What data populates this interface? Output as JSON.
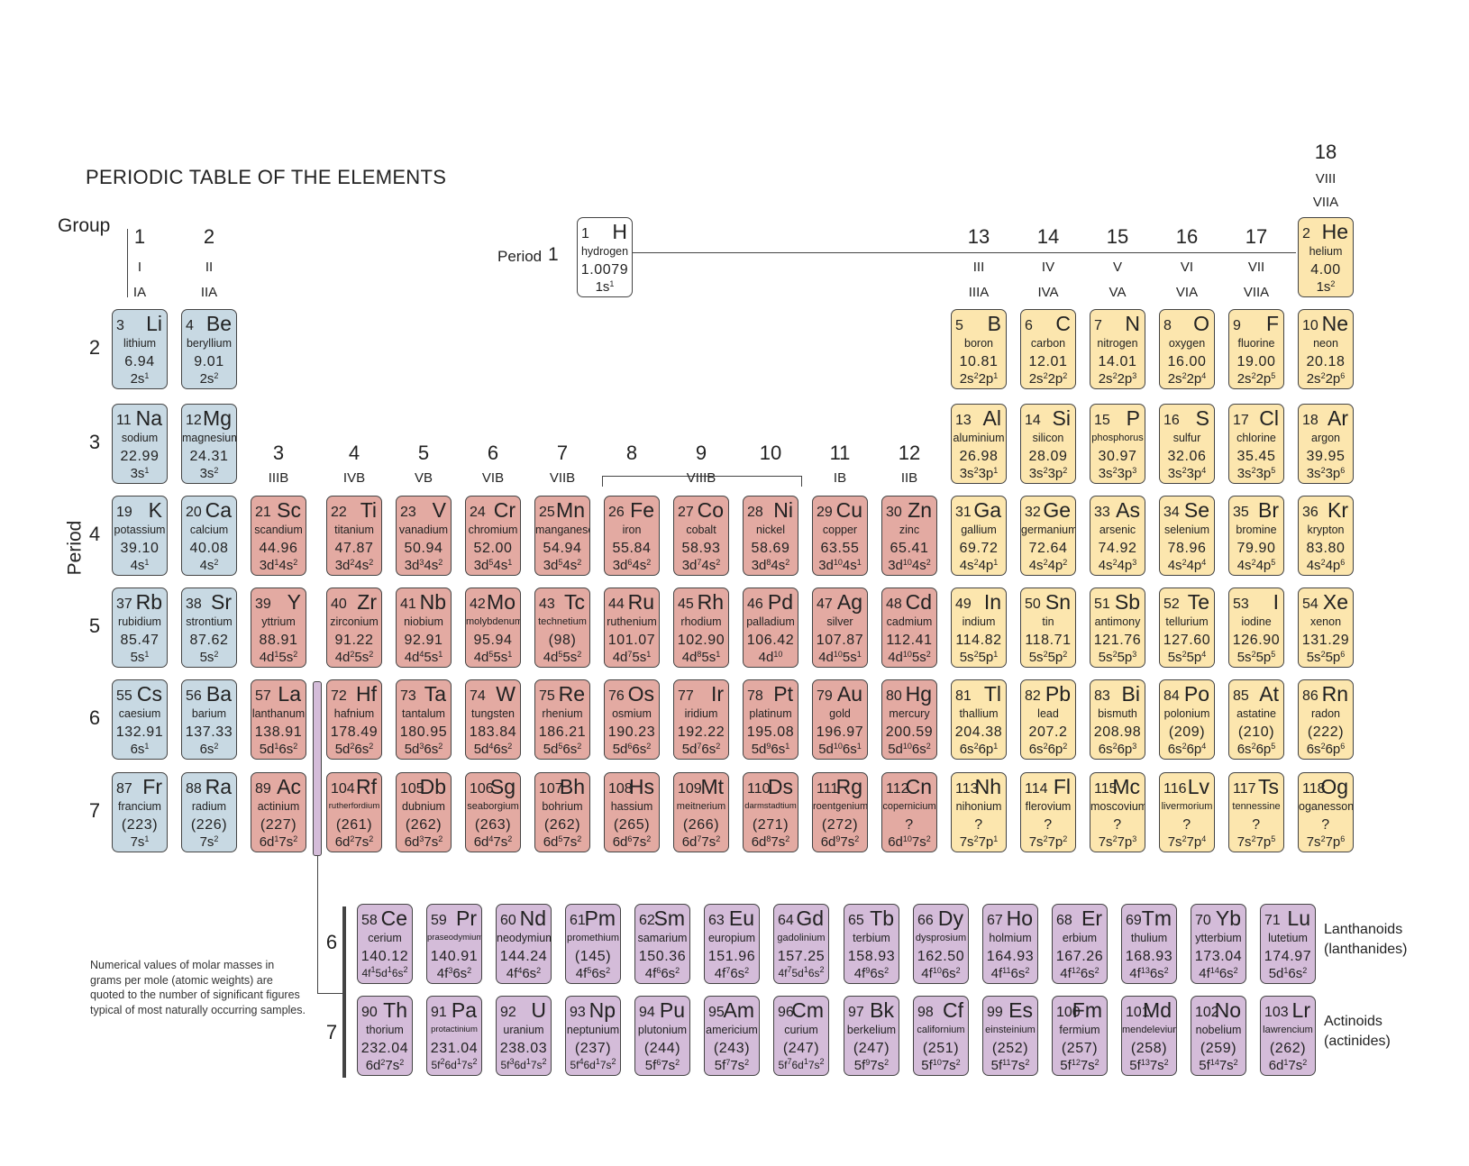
{
  "title": "PERIODIC TABLE OF THE ELEMENTS",
  "labels": {
    "group": "Group",
    "period_vertical": "Period",
    "period_h": "Period",
    "period_h_num": "1",
    "lanthanoids_1": "Lanthanoids",
    "lanthanoids_2": "(lanthanides)",
    "actinoids_1": "Actinoids",
    "actinoids_2": "(actinides)",
    "fblock_6": "6",
    "fblock_7": "7"
  },
  "groups": [
    {
      "n": "1",
      "roman1": "I",
      "roman2": "IA"
    },
    {
      "n": "2",
      "roman1": "II",
      "roman2": "IIA"
    },
    {
      "n": "3",
      "roman2": "IIIB"
    },
    {
      "n": "4",
      "roman2": "IVB"
    },
    {
      "n": "5",
      "roman2": "VB"
    },
    {
      "n": "6",
      "roman2": "VIB"
    },
    {
      "n": "7",
      "roman2": "VIIB"
    },
    {
      "n": "8"
    },
    {
      "n": "9",
      "roman2": "VIIIB"
    },
    {
      "n": "10"
    },
    {
      "n": "11",
      "roman2": "IB"
    },
    {
      "n": "12",
      "roman2": "IIB"
    },
    {
      "n": "13",
      "roman1": "III",
      "roman2": "IIIA"
    },
    {
      "n": "14",
      "roman1": "IV",
      "roman2": "IVA"
    },
    {
      "n": "15",
      "roman1": "V",
      "roman2": "VA"
    },
    {
      "n": "16",
      "roman1": "VI",
      "roman2": "VIA"
    },
    {
      "n": "17",
      "roman1": "VII",
      "roman2": "VIIA"
    },
    {
      "n": "18",
      "roman1": "VIII",
      "roman2": "VIIA"
    }
  ],
  "periods": [
    "2",
    "3",
    "4",
    "5",
    "6",
    "7"
  ],
  "footnote": "Numerical values of molar masses in grams per mole (atomic weights) are quoted to the number of significant figures typical of most naturally occurring samples.",
  "colors": {
    "s": "#c8d9e3",
    "d": "#e3aaa2",
    "p": "#fce6ae",
    "f": "#d4bcd9",
    "h": "#ffffff"
  },
  "elements": [
    [
      "1",
      "H",
      "hydrogen",
      "1.0079",
      "1s^1",
      "h"
    ],
    [
      "2",
      "He",
      "helium",
      "4.00",
      "1s^2",
      "p"
    ],
    [
      "3",
      "Li",
      "lithium",
      "6.94",
      "2s^1",
      "s"
    ],
    [
      "4",
      "Be",
      "beryllium",
      "9.01",
      "2s^2",
      "s"
    ],
    [
      "5",
      "B",
      "boron",
      "10.81",
      "2s^2 2p^1",
      "p"
    ],
    [
      "6",
      "C",
      "carbon",
      "12.01",
      "2s^2 2p^2",
      "p"
    ],
    [
      "7",
      "N",
      "nitrogen",
      "14.01",
      "2s^2 2p^3",
      "p"
    ],
    [
      "8",
      "O",
      "oxygen",
      "16.00",
      "2s^2 2p^4",
      "p"
    ],
    [
      "9",
      "F",
      "fluorine",
      "19.00",
      "2s^2 2p^5",
      "p"
    ],
    [
      "10",
      "Ne",
      "neon",
      "20.18",
      "2s^2 2p^6",
      "p"
    ],
    [
      "11",
      "Na",
      "sodium",
      "22.99",
      "3s^1",
      "s"
    ],
    [
      "12",
      "Mg",
      "magnesium",
      "24.31",
      "3s^2",
      "s"
    ],
    [
      "13",
      "Al",
      "aluminium",
      "26.98",
      "3s^2 3p^1",
      "p"
    ],
    [
      "14",
      "Si",
      "silicon",
      "28.09",
      "3s^2 3p^2",
      "p"
    ],
    [
      "15",
      "P",
      "phosphorus",
      "30.97",
      "3s^2 3p^3",
      "p"
    ],
    [
      "16",
      "S",
      "sulfur",
      "32.06",
      "3s^2 3p^4",
      "p"
    ],
    [
      "17",
      "Cl",
      "chlorine",
      "35.45",
      "3s^2 3p^5",
      "p"
    ],
    [
      "18",
      "Ar",
      "argon",
      "39.95",
      "3s^2 3p^6",
      "p"
    ],
    [
      "19",
      "K",
      "potassium",
      "39.10",
      "4s^1",
      "s"
    ],
    [
      "20",
      "Ca",
      "calcium",
      "40.08",
      "4s^2",
      "s"
    ],
    [
      "21",
      "Sc",
      "scandium",
      "44.96",
      "3d^1 4s^2",
      "d"
    ],
    [
      "22",
      "Ti",
      "titanium",
      "47.87",
      "3d^2 4s^2",
      "d"
    ],
    [
      "23",
      "V",
      "vanadium",
      "50.94",
      "3d^3 4s^2",
      "d"
    ],
    [
      "24",
      "Cr",
      "chromium",
      "52.00",
      "3d^5 4s^1",
      "d"
    ],
    [
      "25",
      "Mn",
      "manganese",
      "54.94",
      "3d^5 4s^2",
      "d"
    ],
    [
      "26",
      "Fe",
      "iron",
      "55.84",
      "3d^6 4s^2",
      "d"
    ],
    [
      "27",
      "Co",
      "cobalt",
      "58.93",
      "3d^7 4s^2",
      "d"
    ],
    [
      "28",
      "Ni",
      "nickel",
      "58.69",
      "3d^8 4s^2",
      "d"
    ],
    [
      "29",
      "Cu",
      "copper",
      "63.55",
      "3d^10 4s^1",
      "d"
    ],
    [
      "30",
      "Zn",
      "zinc",
      "65.41",
      "3d^10 4s^2",
      "d"
    ],
    [
      "31",
      "Ga",
      "gallium",
      "69.72",
      "4s^2 4p^1",
      "p"
    ],
    [
      "32",
      "Ge",
      "germanium",
      "72.64",
      "4s^2 4p^2",
      "p"
    ],
    [
      "33",
      "As",
      "arsenic",
      "74.92",
      "4s^2 4p^3",
      "p"
    ],
    [
      "34",
      "Se",
      "selenium",
      "78.96",
      "4s^2 4p^4",
      "p"
    ],
    [
      "35",
      "Br",
      "bromine",
      "79.90",
      "4s^2 4p^5",
      "p"
    ],
    [
      "36",
      "Kr",
      "krypton",
      "83.80",
      "4s^2 4p^6",
      "p"
    ],
    [
      "37",
      "Rb",
      "rubidium",
      "85.47",
      "5s^1",
      "s"
    ],
    [
      "38",
      "Sr",
      "strontium",
      "87.62",
      "5s^2",
      "s"
    ],
    [
      "39",
      "Y",
      "yttrium",
      "88.91",
      "4d^1 5s^2",
      "d"
    ],
    [
      "40",
      "Zr",
      "zirconium",
      "91.22",
      "4d^2 5s^2",
      "d"
    ],
    [
      "41",
      "Nb",
      "niobium",
      "92.91",
      "4d^4 5s^1",
      "d"
    ],
    [
      "42",
      "Mo",
      "molybdenum",
      "95.94",
      "4d^5 5s^1",
      "d"
    ],
    [
      "43",
      "Tc",
      "technetium",
      "(98)",
      "4d^5 5s^2",
      "d"
    ],
    [
      "44",
      "Ru",
      "ruthenium",
      "101.07",
      "4d^7 5s^1",
      "d"
    ],
    [
      "45",
      "Rh",
      "rhodium",
      "102.90",
      "4d^8 5s^1",
      "d"
    ],
    [
      "46",
      "Pd",
      "palladium",
      "106.42",
      "4d^10",
      "d"
    ],
    [
      "47",
      "Ag",
      "silver",
      "107.87",
      "4d^10 5s^1",
      "d"
    ],
    [
      "48",
      "Cd",
      "cadmium",
      "112.41",
      "4d^10 5s^2",
      "d"
    ],
    [
      "49",
      "In",
      "indium",
      "114.82",
      "5s^2 5p^1",
      "p"
    ],
    [
      "50",
      "Sn",
      "tin",
      "118.71",
      "5s^2 5p^2",
      "p"
    ],
    [
      "51",
      "Sb",
      "antimony",
      "121.76",
      "5s^2 5p^3",
      "p"
    ],
    [
      "52",
      "Te",
      "tellurium",
      "127.60",
      "5s^2 5p^4",
      "p"
    ],
    [
      "53",
      "I",
      "iodine",
      "126.90",
      "5s^2 5p^5",
      "p"
    ],
    [
      "54",
      "Xe",
      "xenon",
      "131.29",
      "5s^2 5p^6",
      "p"
    ],
    [
      "55",
      "Cs",
      "caesium",
      "132.91",
      "6s^1",
      "s"
    ],
    [
      "56",
      "Ba",
      "barium",
      "137.33",
      "6s^2",
      "s"
    ],
    [
      "57",
      "La",
      "lanthanum",
      "138.91",
      "5d^1 6s^2",
      "d"
    ],
    [
      "72",
      "Hf",
      "hafnium",
      "178.49",
      "5d^2 6s^2",
      "d"
    ],
    [
      "73",
      "Ta",
      "tantalum",
      "180.95",
      "5d^3 6s^2",
      "d"
    ],
    [
      "74",
      "W",
      "tungsten",
      "183.84",
      "5d^4 6s^2",
      "d"
    ],
    [
      "75",
      "Re",
      "rhenium",
      "186.21",
      "5d^5 6s^2",
      "d"
    ],
    [
      "76",
      "Os",
      "osmium",
      "190.23",
      "5d^6 6s^2",
      "d"
    ],
    [
      "77",
      "Ir",
      "iridium",
      "192.22",
      "5d^7 6s^2",
      "d"
    ],
    [
      "78",
      "Pt",
      "platinum",
      "195.08",
      "5d^9 6s^1",
      "d"
    ],
    [
      "79",
      "Au",
      "gold",
      "196.97",
      "5d^10 6s^1",
      "d"
    ],
    [
      "80",
      "Hg",
      "mercury",
      "200.59",
      "5d^10 6s^2",
      "d"
    ],
    [
      "81",
      "Tl",
      "thallium",
      "204.38",
      "6s^2 6p^1",
      "p"
    ],
    [
      "82",
      "Pb",
      "lead",
      "207.2",
      "6s^2 6p^2",
      "p"
    ],
    [
      "83",
      "Bi",
      "bismuth",
      "208.98",
      "6s^2 6p^3",
      "p"
    ],
    [
      "84",
      "Po",
      "polonium",
      "(209)",
      "6s^2 6p^4",
      "p"
    ],
    [
      "85",
      "At",
      "astatine",
      "(210)",
      "6s^2 6p^5",
      "p"
    ],
    [
      "86",
      "Rn",
      "radon",
      "(222)",
      "6s^2 6p^6",
      "p"
    ],
    [
      "87",
      "Fr",
      "francium",
      "(223)",
      "7s^1",
      "s"
    ],
    [
      "88",
      "Ra",
      "radium",
      "(226)",
      "7s^2",
      "s"
    ],
    [
      "89",
      "Ac",
      "actinium",
      "(227)",
      "6d^1 7s^2",
      "d"
    ],
    [
      "104",
      "Rf",
      "rutherfordium",
      "(261)",
      "6d^2 7s^2",
      "d"
    ],
    [
      "105",
      "Db",
      "dubnium",
      "(262)",
      "6d^3 7s^2",
      "d"
    ],
    [
      "106",
      "Sg",
      "seaborgium",
      "(263)",
      "6d^4 7s^2",
      "d"
    ],
    [
      "107",
      "Bh",
      "bohrium",
      "(262)",
      "6d^5 7s^2",
      "d"
    ],
    [
      "108",
      "Hs",
      "hassium",
      "(265)",
      "6d^6 7s^2",
      "d"
    ],
    [
      "109",
      "Mt",
      "meitnerium",
      "(266)",
      "6d^7 7s^2",
      "d"
    ],
    [
      "110",
      "Ds",
      "darmstadtium",
      "(271)",
      "6d^8 7s^2",
      "d"
    ],
    [
      "111",
      "Rg",
      "roentgenium",
      "(272)",
      "6d^9 7s^2",
      "d"
    ],
    [
      "112",
      "Cn",
      "copernicium",
      "?",
      "6d^10 7s^2",
      "d"
    ],
    [
      "113",
      "Nh",
      "nihonium",
      "?",
      "7s^2 7p^1",
      "p"
    ],
    [
      "114",
      "Fl",
      "flerovium",
      "?",
      "7s^2 7p^2",
      "p"
    ],
    [
      "115",
      "Mc",
      "moscovium",
      "?",
      "7s^2 7p^3",
      "p"
    ],
    [
      "116",
      "Lv",
      "livermorium",
      "?",
      "7s^2 7p^4",
      "p"
    ],
    [
      "117",
      "Ts",
      "tennessine",
      "?",
      "7s^2 7p^5",
      "p"
    ],
    [
      "118",
      "Og",
      "oganesson",
      "?",
      "7s^2 7p^6",
      "p"
    ],
    [
      "58",
      "Ce",
      "cerium",
      "140.12",
      "4f^1 5d^1 6s^2",
      "f"
    ],
    [
      "59",
      "Pr",
      "praseodymium",
      "140.91",
      "4f^3 6s^2",
      "f"
    ],
    [
      "60",
      "Nd",
      "neodymium",
      "144.24",
      "4f^4 6s^2",
      "f"
    ],
    [
      "61",
      "Pm",
      "promethium",
      "(145)",
      "4f^5 6s^2",
      "f"
    ],
    [
      "62",
      "Sm",
      "samarium",
      "150.36",
      "4f^6 6s^2",
      "f"
    ],
    [
      "63",
      "Eu",
      "europium",
      "151.96",
      "4f^7 6s^2",
      "f"
    ],
    [
      "64",
      "Gd",
      "gadolinium",
      "157.25",
      "4f^7 5d^1 6s^2",
      "f"
    ],
    [
      "65",
      "Tb",
      "terbium",
      "158.93",
      "4f^9 6s^2",
      "f"
    ],
    [
      "66",
      "Dy",
      "dysprosium",
      "162.50",
      "4f^10 6s^2",
      "f"
    ],
    [
      "67",
      "Ho",
      "holmium",
      "164.93",
      "4f^11 6s^2",
      "f"
    ],
    [
      "68",
      "Er",
      "erbium",
      "167.26",
      "4f^12 6s^2",
      "f"
    ],
    [
      "69",
      "Tm",
      "thulium",
      "168.93",
      "4f^13 6s^2",
      "f"
    ],
    [
      "70",
      "Yb",
      "ytterbium",
      "173.04",
      "4f^14 6s^2",
      "f"
    ],
    [
      "71",
      "Lu",
      "lutetium",
      "174.97",
      "5d^1 6s^2",
      "f"
    ],
    [
      "90",
      "Th",
      "thorium",
      "232.04",
      "6d^2 7s^2",
      "f"
    ],
    [
      "91",
      "Pa",
      "protactinium",
      "231.04",
      "5f^2 6d^1 7s^2",
      "f"
    ],
    [
      "92",
      "U",
      "uranium",
      "238.03",
      "5f^3 6d^1 7s^2",
      "f"
    ],
    [
      "93",
      "Np",
      "neptunium",
      "(237)",
      "5f^4 6d^1 7s^2",
      "f"
    ],
    [
      "94",
      "Pu",
      "plutonium",
      "(244)",
      "5f^6 7s^2",
      "f"
    ],
    [
      "95",
      "Am",
      "americium",
      "(243)",
      "5f^7 7s^2",
      "f"
    ],
    [
      "96",
      "Cm",
      "curium",
      "(247)",
      "5f^7 6d^1 7s^2",
      "f"
    ],
    [
      "97",
      "Bk",
      "berkelium",
      "(247)",
      "5f^9 7s^2",
      "f"
    ],
    [
      "98",
      "Cf",
      "californium",
      "(251)",
      "5f^10 7s^2",
      "f"
    ],
    [
      "99",
      "Es",
      "einsteinium",
      "(252)",
      "5f^11 7s^2",
      "f"
    ],
    [
      "100",
      "Fm",
      "fermium",
      "(257)",
      "5f^12 7s^2",
      "f"
    ],
    [
      "101",
      "Md",
      "mendelevium",
      "(258)",
      "5f^13 7s^2",
      "f"
    ],
    [
      "102",
      "No",
      "nobelium",
      "(259)",
      "5f^14 7s^2",
      "f"
    ],
    [
      "103",
      "Lr",
      "lawrencium",
      "(262)",
      "6d^1 7s^2",
      "f"
    ]
  ]
}
